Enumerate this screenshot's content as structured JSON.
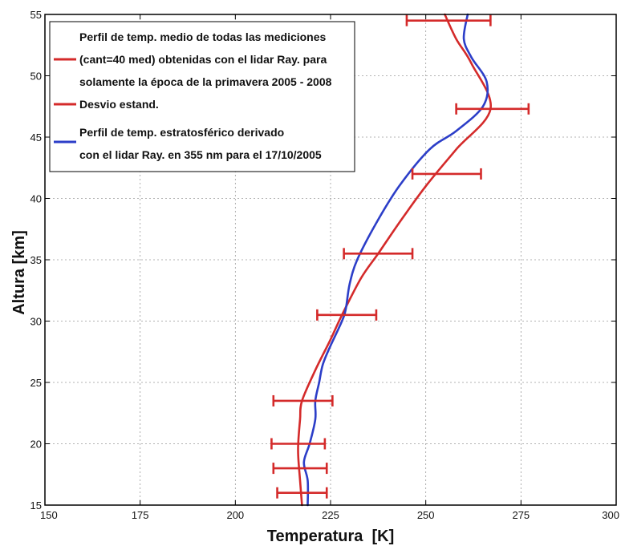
{
  "chart_data": {
    "type": "line",
    "xlabel": "Temperatura  [K]",
    "ylabel": "Altura [km]",
    "xlim": [
      150,
      300
    ],
    "ylim": [
      15,
      55
    ],
    "x_ticks": [
      150,
      175,
      200,
      225,
      250,
      275,
      300
    ],
    "y_ticks": [
      15,
      20,
      25,
      30,
      35,
      40,
      45,
      50,
      55
    ],
    "grid": true,
    "legend_position": "top-left",
    "legend": [
      {
        "lines": [
          "Perfil de temp. medio de todas las mediciones",
          "(cant=40 med) obtenidas con el lidar Ray. para",
          "solamente la época de la primavera 2005 - 2008"
        ],
        "color": "#d42a2a"
      },
      {
        "lines": [
          "Desvio estand."
        ],
        "color": "#d42a2a"
      },
      {
        "lines": [
          "Perfil de temp. estratosférico derivado",
          "con el lidar Ray. en 355 nm para el 17/10/2005"
        ],
        "color": "#2c3ec8"
      }
    ],
    "series": [
      {
        "color": "#d42a2a",
        "points": [
          [
            217.5,
            15
          ],
          [
            217,
            17
          ],
          [
            216.5,
            19
          ],
          [
            216.5,
            20
          ],
          [
            217,
            22
          ],
          [
            217.5,
            23.5
          ],
          [
            221,
            26
          ],
          [
            225,
            28.5
          ],
          [
            228,
            30.5
          ],
          [
            233,
            33.5
          ],
          [
            237.5,
            35.5
          ],
          [
            243,
            38
          ],
          [
            250,
            41
          ],
          [
            258,
            44
          ],
          [
            267,
            47.3
          ],
          [
            262,
            51
          ],
          [
            258,
            53
          ],
          [
            255,
            55
          ]
        ]
      },
      {
        "color": "#2c3ec8",
        "points": [
          [
            219,
            15
          ],
          [
            219,
            17
          ],
          [
            218,
            18.5
          ],
          [
            219.5,
            20
          ],
          [
            221,
            22
          ],
          [
            221,
            23.5
          ],
          [
            222,
            25
          ],
          [
            223,
            26.5
          ],
          [
            225,
            28
          ],
          [
            228,
            30
          ],
          [
            229,
            31
          ],
          [
            230,
            33
          ],
          [
            232,
            35
          ],
          [
            237,
            38
          ],
          [
            243,
            41
          ],
          [
            251,
            44
          ],
          [
            258,
            45.5
          ],
          [
            265,
            47.5
          ],
          [
            266,
            49.5
          ],
          [
            262,
            51.5
          ],
          [
            260,
            53
          ],
          [
            261,
            55
          ]
        ]
      }
    ],
    "error_bars": {
      "color": "#d42a2a",
      "bars": [
        {
          "y": 16,
          "xmin": 211,
          "xmax": 224
        },
        {
          "y": 18,
          "xmin": 210,
          "xmax": 224
        },
        {
          "y": 20,
          "xmin": 209.5,
          "xmax": 223.5
        },
        {
          "y": 23.5,
          "xmin": 210,
          "xmax": 225.5
        },
        {
          "y": 30.5,
          "xmin": 221.5,
          "xmax": 237
        },
        {
          "y": 35.5,
          "xmin": 228.5,
          "xmax": 246.5
        },
        {
          "y": 42,
          "xmin": 246.5,
          "xmax": 264.5
        },
        {
          "y": 47.3,
          "xmin": 258,
          "xmax": 277
        },
        {
          "y": 54.5,
          "xmin": 245,
          "xmax": 267
        }
      ]
    }
  }
}
